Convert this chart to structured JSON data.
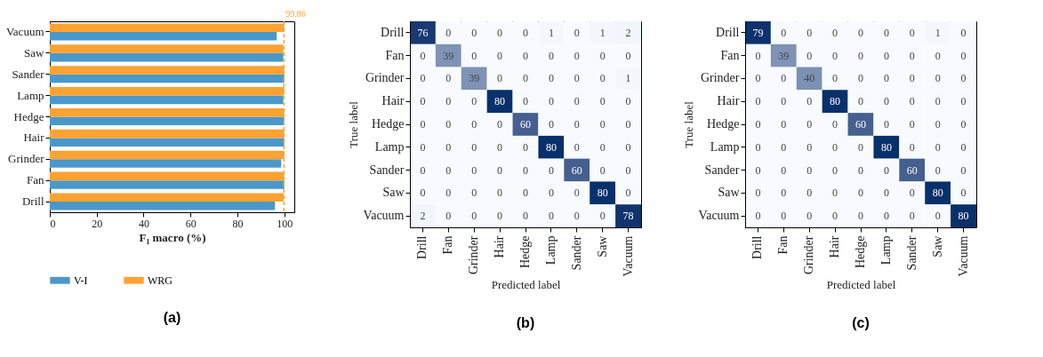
{
  "chart_data": [
    {
      "type": "bar",
      "orientation": "horizontal",
      "xlabel": "F₁ macro (%)",
      "categories": [
        "Vacuum",
        "Saw",
        "Sander",
        "Lamp",
        "Hedge",
        "Hair",
        "Grinder",
        "Fan",
        "Drill"
      ],
      "series": [
        {
          "name": "V-I",
          "color": "#4a98c9",
          "values": [
            96.8,
            99.6,
            100,
            99.6,
            100,
            100,
            98.7,
            100,
            96.0
          ]
        },
        {
          "name": "WRG",
          "color": "#fea232",
          "values": [
            100,
            99.6,
            100,
            100,
            100,
            100,
            100,
            100,
            99.7
          ]
        }
      ],
      "xlim": [
        0,
        104.3
      ],
      "xticks": [
        0,
        20,
        40,
        60,
        80,
        100
      ],
      "grid": false,
      "legend": "bottom",
      "ref_lines": [
        {
          "axis": "x",
          "value": 99.86,
          "label": "99.86",
          "color": "#fea232",
          "line_style": "dashed"
        }
      ],
      "annotations": [
        "(a)"
      ]
    },
    {
      "type": "heatmap",
      "xlabel": "Predicted label",
      "ylabel": "True label",
      "categories": [
        "Drill",
        "Fan",
        "Grinder",
        "Hair",
        "Hedge",
        "Lamp",
        "Sander",
        "Saw",
        "Vacuum"
      ],
      "y_categories": [
        "Drill",
        "Fan",
        "Grinder",
        "Hair",
        "Hedge",
        "Lamp",
        "Sander",
        "Saw",
        "Vacuum"
      ],
      "cells": [
        [
          76,
          0,
          0,
          0,
          0,
          1,
          0,
          1,
          2
        ],
        [
          0,
          39,
          0,
          0,
          0,
          0,
          0,
          0,
          0
        ],
        [
          0,
          0,
          39,
          0,
          0,
          0,
          0,
          0,
          1
        ],
        [
          0,
          0,
          0,
          80,
          0,
          0,
          0,
          0,
          0
        ],
        [
          0,
          0,
          0,
          0,
          60,
          0,
          0,
          0,
          0
        ],
        [
          0,
          0,
          0,
          0,
          0,
          80,
          0,
          0,
          0
        ],
        [
          0,
          0,
          0,
          0,
          0,
          0,
          60,
          0,
          0
        ],
        [
          0,
          0,
          0,
          0,
          0,
          0,
          0,
          80,
          0
        ],
        [
          2,
          0,
          0,
          0,
          0,
          0,
          0,
          0,
          78
        ]
      ],
      "data_labels": true,
      "annotations": [
        "(b)"
      ]
    },
    {
      "type": "heatmap",
      "xlabel": "Predicted label",
      "ylabel": "True label",
      "categories": [
        "Drill",
        "Fan",
        "Grinder",
        "Hair",
        "Hedge",
        "Lamp",
        "Sander",
        "Saw",
        "Vacuum"
      ],
      "y_categories": [
        "Drill",
        "Fan",
        "Grinder",
        "Hair",
        "Hedge",
        "Lamp",
        "Sander",
        "Saw",
        "Vacuum"
      ],
      "cells": [
        [
          79,
          0,
          0,
          0,
          0,
          0,
          0,
          1,
          0
        ],
        [
          0,
          39,
          0,
          0,
          0,
          0,
          0,
          0,
          0
        ],
        [
          0,
          0,
          40,
          0,
          0,
          0,
          0,
          0,
          0
        ],
        [
          0,
          0,
          0,
          80,
          0,
          0,
          0,
          0,
          0
        ],
        [
          0,
          0,
          0,
          0,
          60,
          0,
          0,
          0,
          0
        ],
        [
          0,
          0,
          0,
          0,
          0,
          80,
          0,
          0,
          0
        ],
        [
          0,
          0,
          0,
          0,
          0,
          0,
          60,
          0,
          0
        ],
        [
          0,
          0,
          0,
          0,
          0,
          0,
          0,
          80,
          0
        ],
        [
          0,
          0,
          0,
          0,
          0,
          0,
          0,
          0,
          80
        ]
      ],
      "data_labels": true,
      "annotations": [
        "(c)"
      ]
    }
  ]
}
